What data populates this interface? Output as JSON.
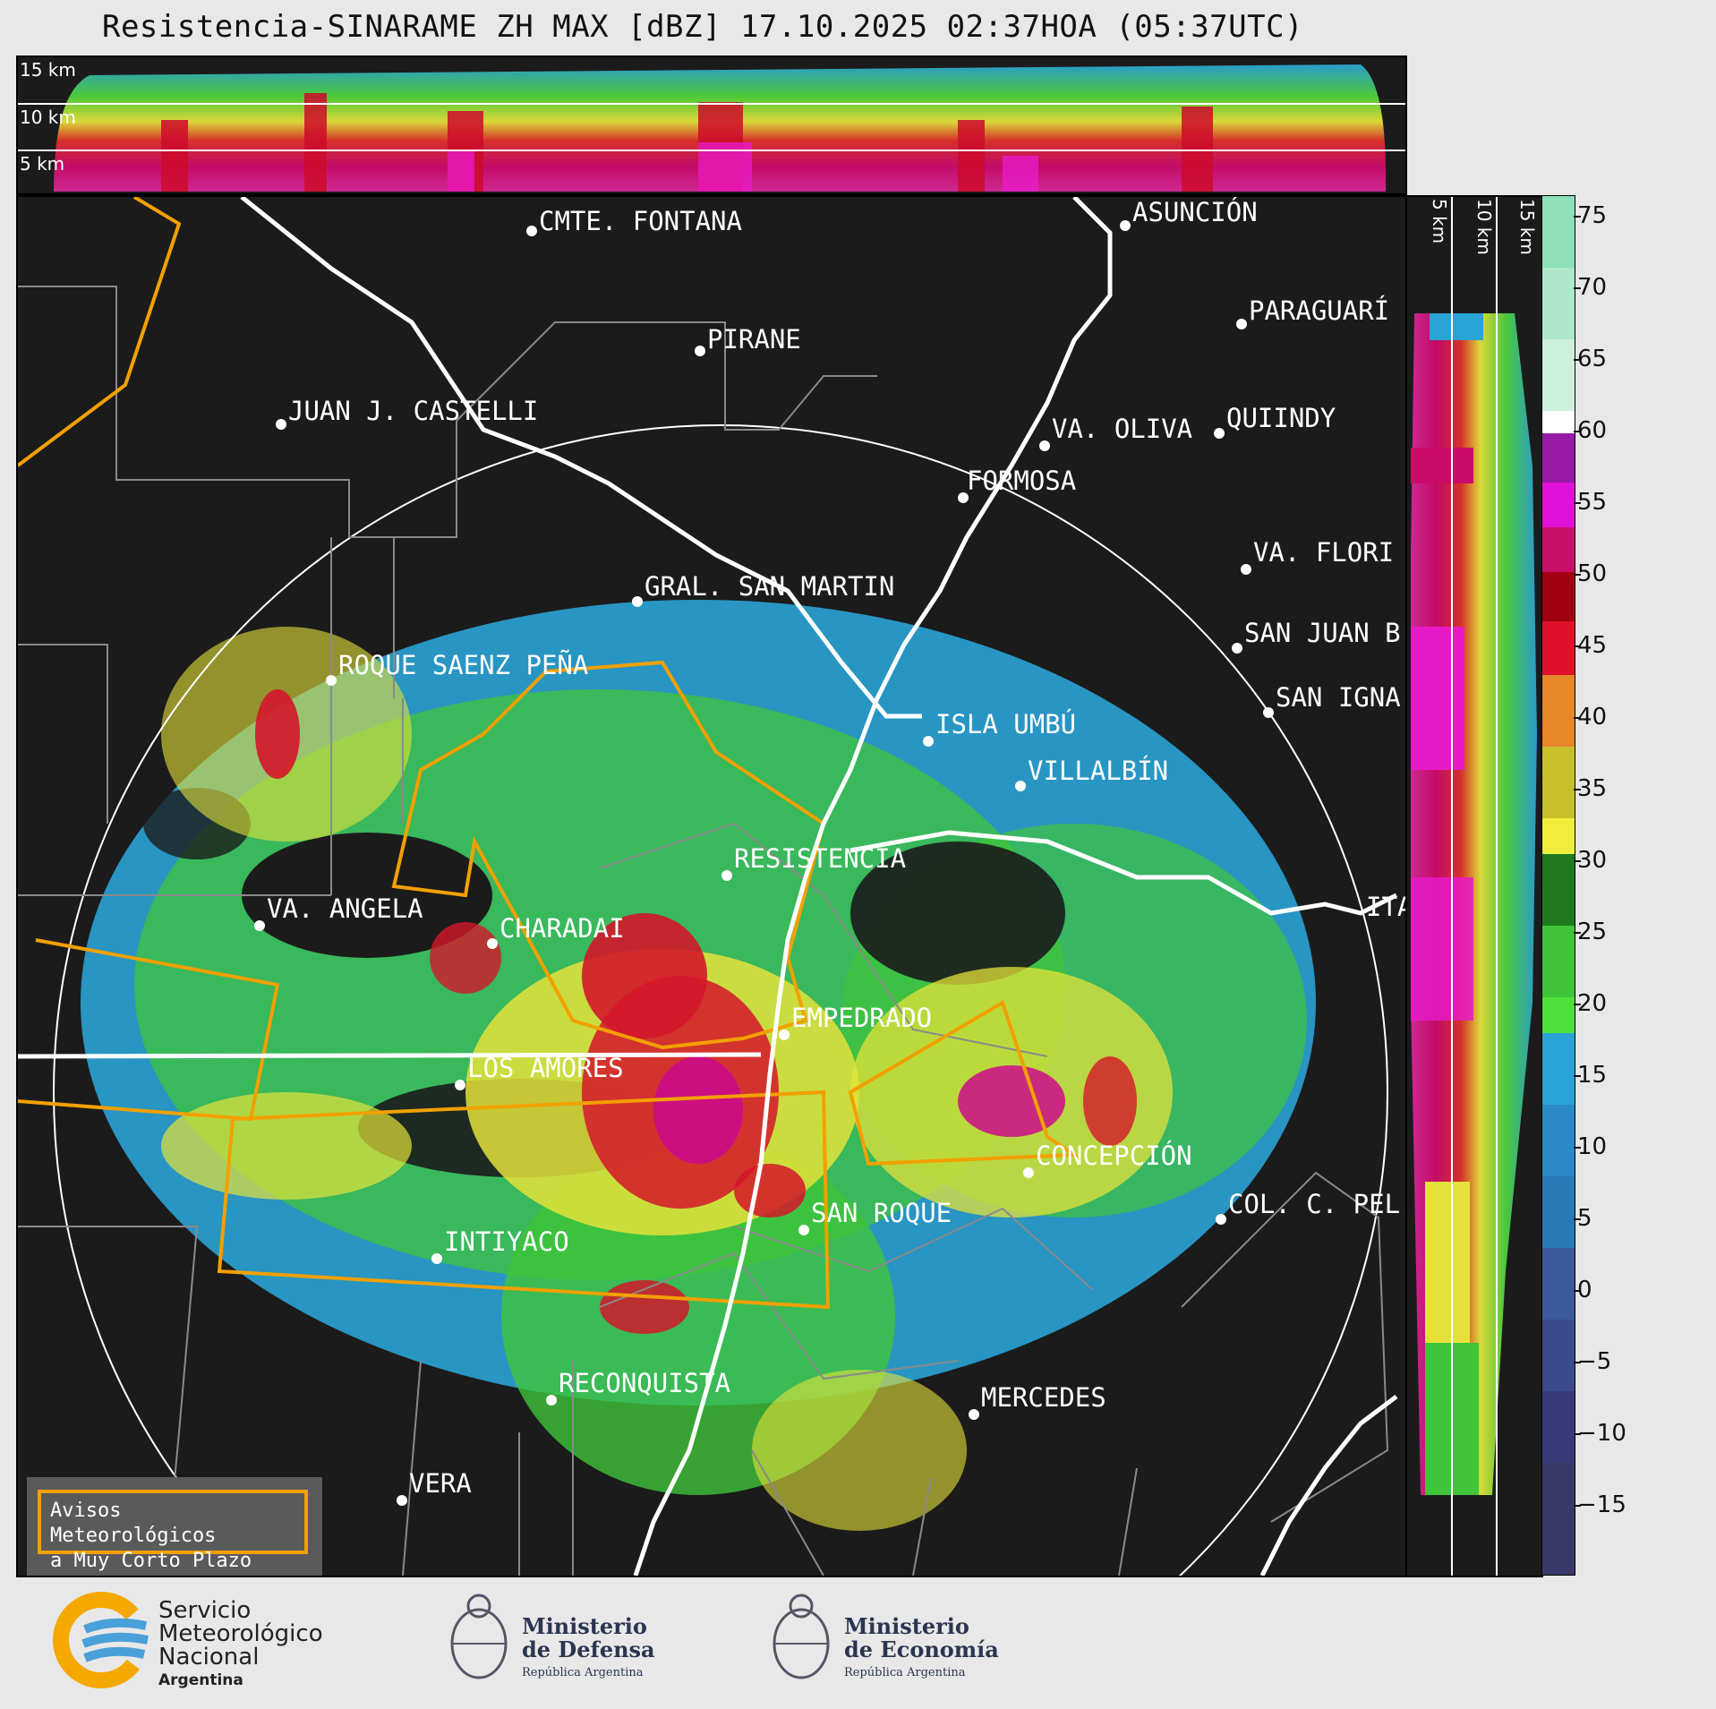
{
  "title": "Resistencia-SINARAME ZH MAX [dBZ] 17.10.2025 02:37HOA (05:37UTC)",
  "top_panel": {
    "height_labels": [
      "15 km",
      "10 km",
      "5 km"
    ]
  },
  "side_panel": {
    "height_labels": [
      "5 km",
      "10 km",
      "15 km"
    ]
  },
  "colorbar": {
    "unit": "dBZ",
    "ticks": [
      "75",
      "70",
      "65",
      "60",
      "55",
      "50",
      "45",
      "40",
      "35",
      "30",
      "25",
      "20",
      "15",
      "10",
      "5",
      "0",
      "−5",
      "−10",
      "−15"
    ]
  },
  "cities": [
    {
      "name": "CMTE. FONTANA"
    },
    {
      "name": "ASUNCIÓN"
    },
    {
      "name": "PARAGUARÍ"
    },
    {
      "name": "PIRANE"
    },
    {
      "name": "JUAN J. CASTELLI"
    },
    {
      "name": "VA. OLIVA"
    },
    {
      "name": "QUIINDY"
    },
    {
      "name": "FORMOSA"
    },
    {
      "name": "VA. FLORI"
    },
    {
      "name": "GRAL. SAN MARTIN"
    },
    {
      "name": "SAN JUAN B"
    },
    {
      "name": "ROQUE SAENZ PEÑA"
    },
    {
      "name": "SAN IGNA"
    },
    {
      "name": "ISLA UMBÚ"
    },
    {
      "name": "VILLALBÍN"
    },
    {
      "name": "RESISTENCIA"
    },
    {
      "name": "VA. ANGELA"
    },
    {
      "name": "CHARADAI"
    },
    {
      "name": "ITA"
    },
    {
      "name": "EMPEDRADO"
    },
    {
      "name": "LOS AMORES"
    },
    {
      "name": "CONCEPCIÓN"
    },
    {
      "name": "SAN ROQUE"
    },
    {
      "name": "COL. C. PEL"
    },
    {
      "name": "INTIYACO"
    },
    {
      "name": "RECONQUISTA"
    },
    {
      "name": "MERCEDES"
    },
    {
      "name": "VERA"
    }
  ],
  "warning_box": {
    "line1": "Avisos Meteorológicos",
    "line2": "a Muy Corto Plazo"
  },
  "logos": {
    "smn": {
      "line1": "Servicio",
      "line2": "Meteorológico",
      "line3": "Nacional",
      "line4": "Argentina"
    },
    "defensa": {
      "line1": "Ministerio",
      "line2": "de Defensa",
      "line3": "República Argentina"
    },
    "economia": {
      "line1": "Ministerio",
      "line2": "de Economía",
      "line3": "República Argentina"
    }
  }
}
